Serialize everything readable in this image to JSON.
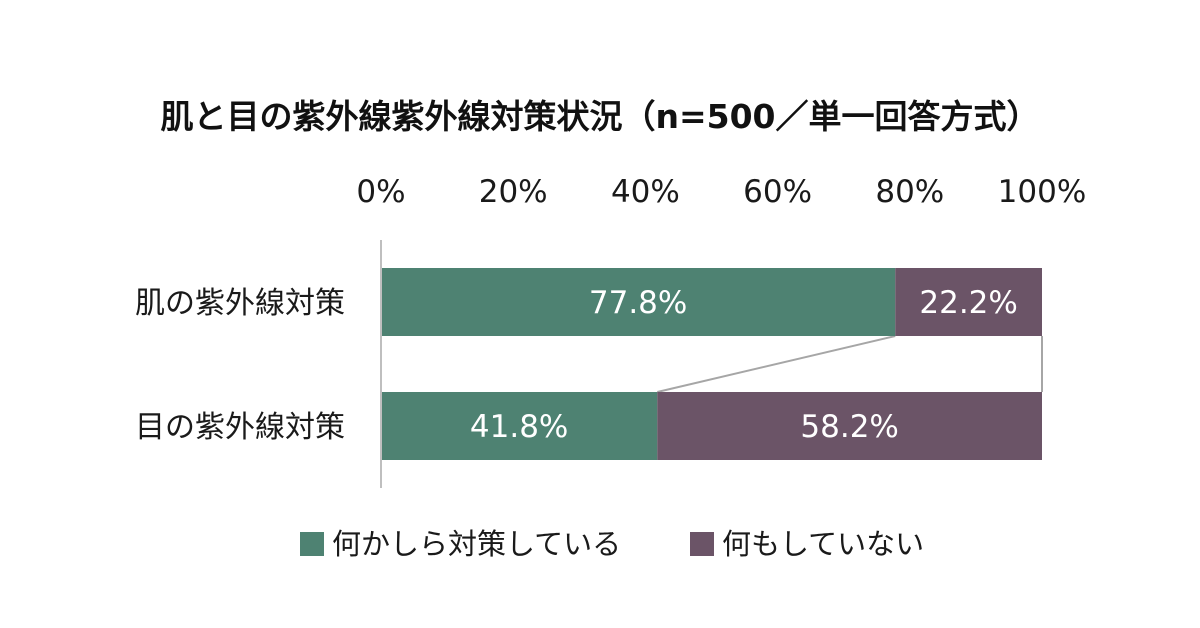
{
  "chart_data": {
    "type": "bar",
    "orientation": "horizontal",
    "stacked": "percent",
    "title": "肌と目の紫外線紫外線対策状況（n=500／単一回答方式）",
    "categories": [
      "肌の紫外線対策",
      "目の紫外線対策"
    ],
    "series": [
      {
        "name": "何かしら対策している",
        "values": [
          77.8,
          41.8
        ],
        "color": "#4e8272"
      },
      {
        "name": "何もしていない",
        "values": [
          22.2,
          58.2
        ],
        "color": "#6b5467"
      }
    ],
    "x_ticks": [
      "0%",
      "20%",
      "40%",
      "60%",
      "80%",
      "100%"
    ],
    "xlim": [
      0,
      100
    ],
    "xaxis_position": "top",
    "data_labels": [
      "77.8%",
      "41.8%",
      "22.2%",
      "58.2%"
    ],
    "series_lines": true,
    "grid": false,
    "legend_position": "bottom"
  }
}
